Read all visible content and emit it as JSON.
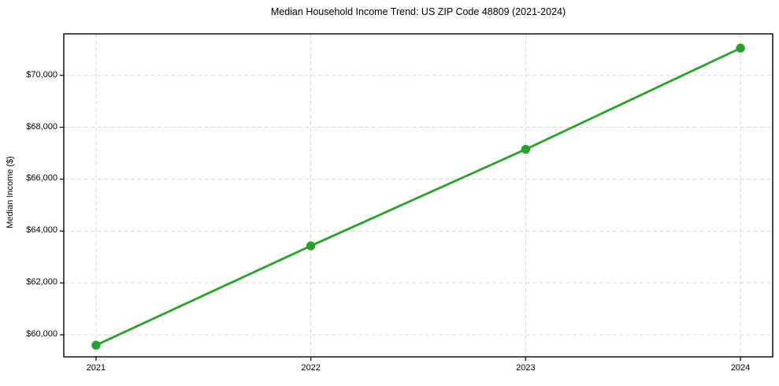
{
  "chart_data": {
    "type": "line",
    "title": "Median Household Income Trend: US ZIP Code 48809 (2021-2024)",
    "xlabel": "",
    "ylabel": "Median Income ($)",
    "x": [
      2021,
      2022,
      2023,
      2024
    ],
    "series": [
      {
        "name": "Median Household Income",
        "values": [
          59600,
          63430,
          67150,
          71050
        ],
        "color": "#2ca02c",
        "marker": "circle",
        "line_width": 2.8,
        "marker_radius": 5.7
      }
    ],
    "xticks": {
      "values": [
        2021,
        2022,
        2023,
        2024
      ],
      "labels": [
        "2021",
        "2022",
        "2023",
        "2024"
      ]
    },
    "yticks": {
      "values": [
        60000,
        62000,
        64000,
        66000,
        68000,
        70000
      ],
      "labels": [
        "$60,000",
        "$62,000",
        "$64,000",
        "$66,000",
        "$68,000",
        "$70,000"
      ]
    },
    "xlim": [
      2020.85,
      2024.15
    ],
    "ylim": [
      59150,
      71600
    ],
    "grid": {
      "on": true,
      "style": "dashed",
      "color": "#d8d8d8"
    },
    "legend": {
      "visible": false
    },
    "axis_color": "#000000",
    "text_color": "#000000",
    "background_color": "#ffffff"
  }
}
